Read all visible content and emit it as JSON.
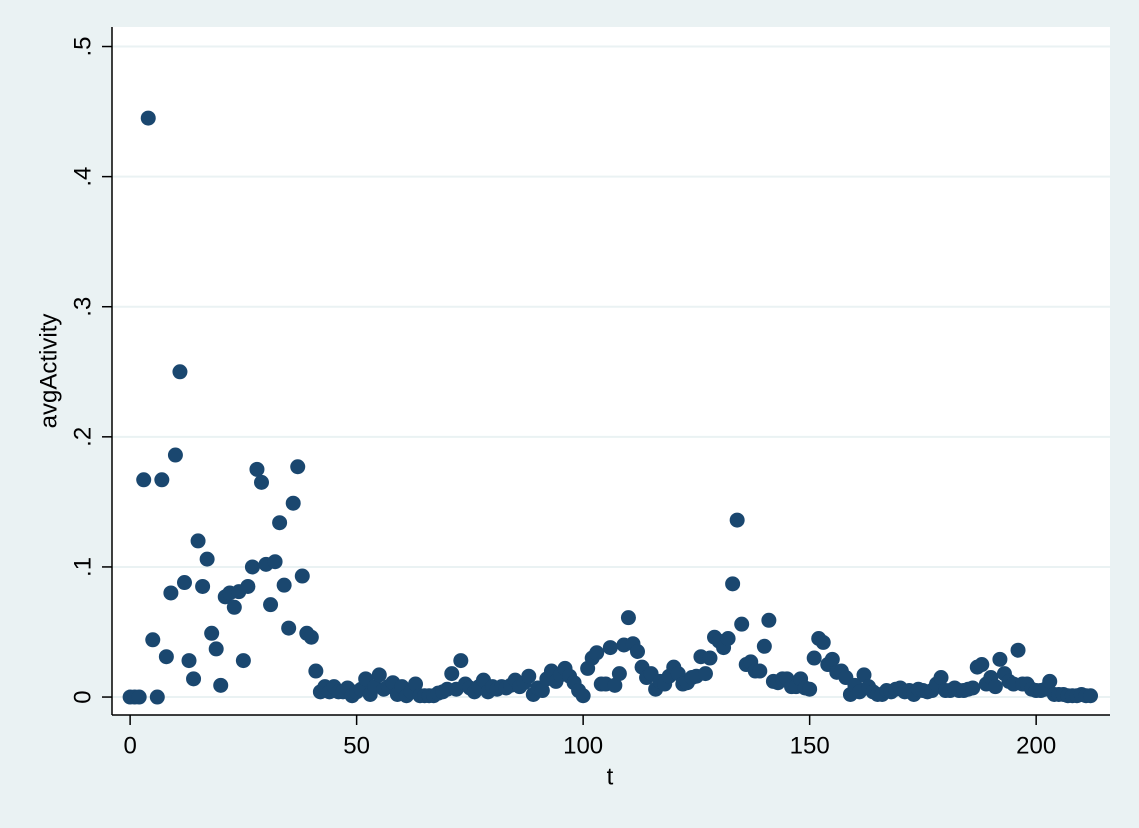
{
  "chart_data": {
    "type": "scatter",
    "xlabel": "t",
    "ylabel": "avgActivity",
    "x": [
      0,
      1,
      2,
      3,
      4,
      5,
      6,
      7,
      8,
      9,
      10,
      11,
      12,
      13,
      14,
      15,
      16,
      17,
      18,
      19,
      20,
      21,
      22,
      23,
      24,
      25,
      26,
      27,
      28,
      29,
      30,
      31,
      32,
      33,
      34,
      35,
      36,
      37,
      38,
      39,
      40,
      41,
      42,
      43,
      44,
      45,
      46,
      47,
      48,
      49,
      50,
      51,
      52,
      53,
      54,
      55,
      56,
      57,
      58,
      59,
      60,
      61,
      62,
      63,
      64,
      65,
      66,
      67,
      68,
      69,
      70,
      71,
      72,
      73,
      74,
      75,
      76,
      77,
      78,
      79,
      80,
      81,
      82,
      83,
      84,
      85,
      86,
      87,
      88,
      89,
      90,
      91,
      92,
      93,
      94,
      95,
      96,
      97,
      98,
      99,
      100,
      101,
      102,
      103,
      104,
      105,
      106,
      107,
      108,
      109,
      110,
      111,
      112,
      113,
      114,
      115,
      116,
      117,
      118,
      119,
      120,
      121,
      122,
      123,
      124,
      125,
      126,
      127,
      128,
      129,
      130,
      131,
      132,
      133,
      134,
      135,
      136,
      137,
      138,
      139,
      140,
      141,
      142,
      143,
      144,
      145,
      146,
      147,
      148,
      149,
      150,
      151,
      152,
      153,
      154,
      155,
      156,
      157,
      158,
      159,
      160,
      161,
      162,
      163,
      164,
      165,
      166,
      167,
      168,
      169,
      170,
      171,
      172,
      173,
      174,
      175,
      176,
      177,
      178,
      179,
      180,
      181,
      182,
      183,
      184,
      185,
      186,
      187,
      188,
      189,
      190,
      191,
      192,
      193,
      194,
      195,
      196,
      197,
      198,
      199,
      200,
      201,
      202,
      203,
      204,
      205,
      206,
      207,
      208,
      209,
      210,
      211,
      212
    ],
    "series": [
      {
        "color": "#1a476f",
        "values": [
          0,
          0,
          0,
          0.167,
          0.445,
          0.044,
          0,
          0.167,
          0.031,
          0.08,
          0.186,
          0.25,
          0.088,
          0.028,
          0.014,
          0.12,
          0.085,
          0.106,
          0.049,
          0.037,
          0.009,
          0.077,
          0.08,
          0.069,
          0.081,
          0.028,
          0.085,
          0.1,
          0.175,
          0.165,
          0.102,
          0.071,
          0.104,
          0.134,
          0.086,
          0.053,
          0.149,
          0.177,
          0.093,
          0.049,
          0.046,
          0.02,
          0.004,
          0.008,
          0.004,
          0.008,
          0.004,
          0.004,
          0.007,
          0.001,
          0.004,
          0.006,
          0.014,
          0.002,
          0.008,
          0.017,
          0.006,
          0.008,
          0.011,
          0.002,
          0.008,
          0.001,
          0.004,
          0.01,
          0.001,
          0.001,
          0.001,
          0.001,
          0.003,
          0.004,
          0.006,
          0.018,
          0.006,
          0.028,
          0.01,
          0.007,
          0.004,
          0.008,
          0.013,
          0.004,
          0.008,
          0.006,
          0.008,
          0.007,
          0.009,
          0.013,
          0.008,
          0.011,
          0.016,
          0.002,
          0.007,
          0.005,
          0.014,
          0.02,
          0.012,
          0.017,
          0.022,
          0.016,
          0.011,
          0.005,
          0.001,
          0.022,
          0.03,
          0.034,
          0.01,
          0.01,
          0.038,
          0.009,
          0.018,
          0.04,
          0.061,
          0.041,
          0.035,
          0.023,
          0.015,
          0.018,
          0.006,
          0.012,
          0.01,
          0.016,
          0.023,
          0.018,
          0.01,
          0.011,
          0.015,
          0.016,
          0.031,
          0.018,
          0.03,
          0.046,
          0.043,
          0.038,
          0.045,
          0.087,
          0.136,
          0.056,
          0.025,
          0.027,
          0.02,
          0.02,
          0.039,
          0.059,
          0.012,
          0.011,
          0.014,
          0.014,
          0.008,
          0.008,
          0.014,
          0.007,
          0.006,
          0.03,
          0.045,
          0.042,
          0.025,
          0.029,
          0.019,
          0.02,
          0.015,
          0.002,
          0.009,
          0.004,
          0.017,
          0.008,
          0.004,
          0.002,
          0.002,
          0.005,
          0.004,
          0.006,
          0.007,
          0.004,
          0.005,
          0.002,
          0.006,
          0.005,
          0.004,
          0.005,
          0.01,
          0.015,
          0.005,
          0.005,
          0.007,
          0.005,
          0.005,
          0.006,
          0.007,
          0.023,
          0.025,
          0.01,
          0.015,
          0.008,
          0.029,
          0.018,
          0.012,
          0.01,
          0.036,
          0.01,
          0.01,
          0.006,
          0.005,
          0.005,
          0.006,
          0.012,
          0.002,
          0.002,
          0.002,
          0.001,
          0.001,
          0.001,
          0.002,
          0.001,
          0.001
        ]
      }
    ],
    "xlim": [
      -4,
      216.3
    ],
    "ylim": [
      -0.0138,
      0.515
    ],
    "xticks": [
      0,
      50,
      100,
      150,
      200
    ],
    "yticks": [
      0,
      {
        "value": 0.1,
        "label": ".1"
      },
      {
        "value": 0.2,
        "label": ".2"
      },
      {
        "value": 0.3,
        "label": ".3"
      },
      {
        "value": 0.4,
        "label": ".4"
      },
      {
        "value": 0.5,
        "label": ".5"
      }
    ],
    "grid": true
  }
}
